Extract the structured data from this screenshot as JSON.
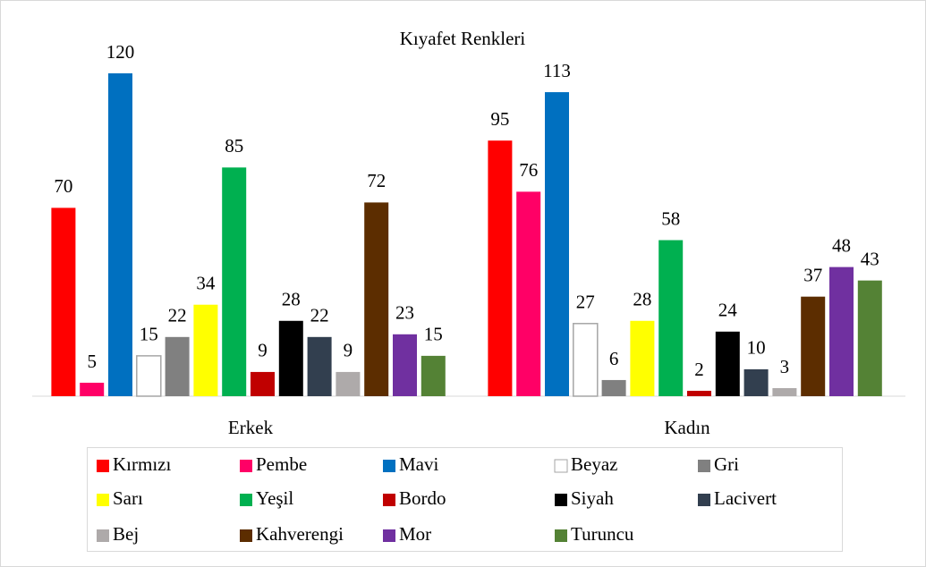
{
  "chart_data": {
    "type": "bar",
    "title": "Kıyafet Renkleri",
    "categories": [
      "Erkek",
      "Kadın"
    ],
    "series": [
      {
        "name": "Kırmızı",
        "color": "#ff0000",
        "values": [
          70,
          95
        ]
      },
      {
        "name": "Pembe",
        "color": "#ff0066",
        "values": [
          5,
          76
        ]
      },
      {
        "name": "Mavi",
        "color": "#0070c0",
        "values": [
          120,
          113
        ]
      },
      {
        "name": "Beyaz",
        "color": "#ffffff",
        "values": [
          15,
          27
        ]
      },
      {
        "name": "Gri",
        "color": "#808080",
        "values": [
          22,
          6
        ]
      },
      {
        "name": "Sarı",
        "color": "#ffff00",
        "values": [
          34,
          28
        ]
      },
      {
        "name": "Yeşil",
        "color": "#00b050",
        "values": [
          85,
          58
        ]
      },
      {
        "name": "Bordo",
        "color": "#c00000",
        "values": [
          9,
          2
        ]
      },
      {
        "name": "Siyah",
        "color": "#000000",
        "values": [
          28,
          24
        ]
      },
      {
        "name": "Lacivert",
        "color": "#323f4f",
        "values": [
          22,
          10
        ]
      },
      {
        "name": "Bej",
        "color": "#aeaaaa",
        "values": [
          9,
          3
        ]
      },
      {
        "name": "Kahverengi",
        "color": "#5c2d00",
        "values": [
          72,
          37
        ]
      },
      {
        "name": "Mor",
        "color": "#7030a0",
        "values": [
          23,
          48
        ]
      },
      {
        "name": "Turuncu",
        "color": "#548235",
        "values": [
          15,
          43
        ]
      }
    ],
    "legend": "bottom"
  }
}
